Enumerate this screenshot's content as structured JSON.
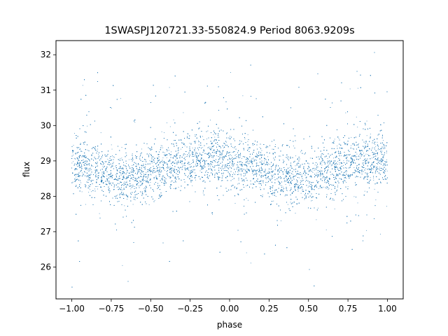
{
  "chart_data": {
    "type": "scatter",
    "title": "1SWASPJ120721.33-550824.9 Period 8063.9209s",
    "xlabel": "phase",
    "ylabel": "flux",
    "xlim": [
      -1.1,
      1.1
    ],
    "ylim": [
      25.1,
      32.4
    ],
    "xticks": [
      -1.0,
      -0.75,
      -0.5,
      -0.25,
      0.0,
      0.25,
      0.5,
      0.75,
      1.0
    ],
    "xtick_labels": [
      "−1.00",
      "−0.75",
      "−0.50",
      "−0.25",
      "0.00",
      "0.25",
      "0.50",
      "0.75",
      "1.00"
    ],
    "yticks": [
      26,
      27,
      28,
      29,
      30,
      31,
      32
    ],
    "ytick_labels": [
      "26",
      "27",
      "28",
      "29",
      "30",
      "31",
      "32"
    ],
    "grid": false,
    "series": [
      {
        "color": "#1f77b4",
        "x_range": [
          -1.0,
          1.0
        ],
        "profile_x": [
          -1.0,
          -0.9,
          -0.8,
          -0.7,
          -0.6,
          -0.5,
          -0.4,
          -0.3,
          -0.2,
          -0.1,
          0.0,
          0.1,
          0.2,
          0.3,
          0.4,
          0.5,
          0.6,
          0.7,
          0.8,
          0.9,
          1.0
        ],
        "profile_y": [
          28.95,
          28.85,
          28.65,
          28.55,
          28.55,
          28.65,
          28.8,
          28.95,
          29.05,
          29.1,
          29.0,
          28.9,
          28.75,
          28.6,
          28.5,
          28.5,
          28.65,
          28.85,
          29.0,
          29.05,
          29.0
        ],
        "core_scatter": 0.38,
        "outlier_range": [
          25.4,
          32.1
        ],
        "n_points": 16000
      }
    ]
  }
}
